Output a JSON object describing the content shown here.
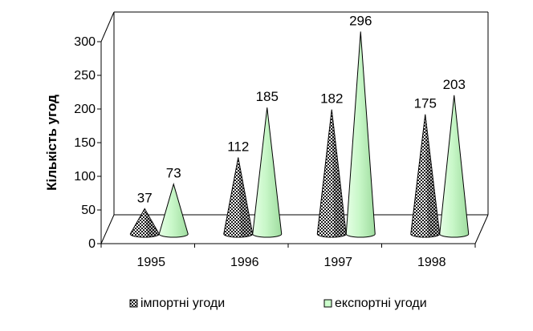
{
  "chart_data": {
    "type": "bar",
    "style": "3d-cone",
    "categories": [
      "1995",
      "1996",
      "1997",
      "1998"
    ],
    "series": [
      {
        "name": "імпортні угоди",
        "values": [
          37,
          112,
          182,
          175
        ],
        "color": "#333333",
        "pattern": "checkered"
      },
      {
        "name": "експортні угоди",
        "values": [
          73,
          185,
          296,
          203
        ],
        "color": "#ccffcc",
        "pattern": "solid"
      }
    ],
    "title": "",
    "xlabel": "",
    "ylabel": "Кількість угод",
    "ylim": [
      0,
      300
    ],
    "yticks": [
      0,
      50,
      100,
      150,
      200,
      250,
      300
    ],
    "grid": false,
    "legend_position": "bottom"
  }
}
